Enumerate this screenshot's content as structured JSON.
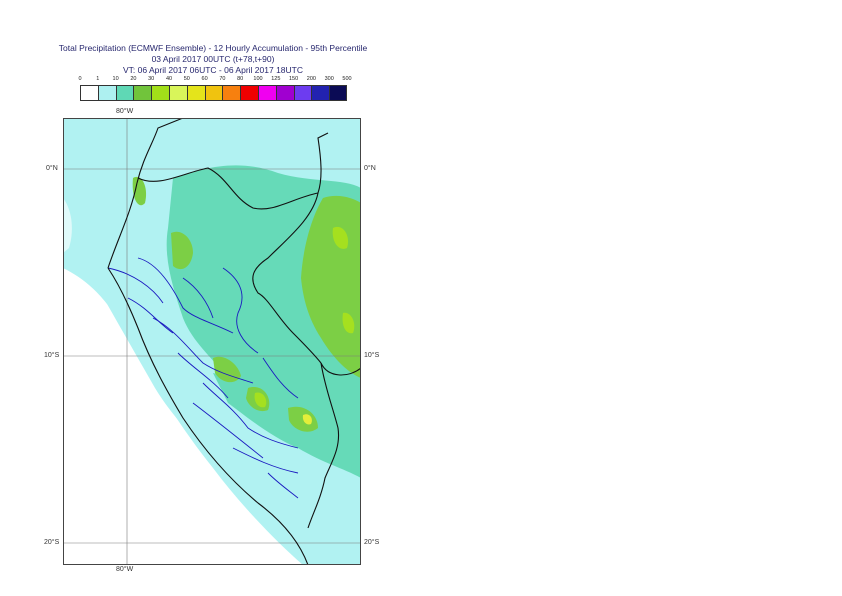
{
  "titles": {
    "line1": "Total Precipitation (ECMWF Ensemble) - 12 Hourly Accumulation - 95th Percentile",
    "line2": "03 April 2017 00UTC (t+78,t+90)",
    "line3": "VT: 06 April 2017 06UTC - 06 April 2017 18UTC"
  },
  "legend": {
    "labels": [
      "0",
      "1",
      "10",
      "20",
      "30",
      "40",
      "50",
      "60",
      "70",
      "80",
      "100",
      "125",
      "150",
      "200",
      "300",
      "500"
    ],
    "colors": [
      "#ffffff",
      "#adf0f0",
      "#5fd8b5",
      "#71c43b",
      "#a2df19",
      "#d9f55a",
      "#e4e41b",
      "#f0c30f",
      "#f7800f",
      "#f00000",
      "#f000f0",
      "#a000d0",
      "#6d3cf0",
      "#2222b0",
      "#0b0b55"
    ]
  },
  "axis_labels": {
    "top_lon": "80°W",
    "bottom_lon": "80°W",
    "lat_0_left": "0°N",
    "lat_0_right": "0°N",
    "lat_10_left": "10°S",
    "lat_10_right": "10°S",
    "lat_20_left": "20°S",
    "lat_20_right": "20°S"
  },
  "map_colors": {
    "ocean_light": "#b1f2f2",
    "land_teal": "#66dab8",
    "land_green": "#7ccf45",
    "land_lime": "#a5e01f",
    "land_yellow": "#e4ee3a",
    "border_country": "#111111",
    "border_dept": "#1a1ac0",
    "grid": "#7a7a7a"
  }
}
